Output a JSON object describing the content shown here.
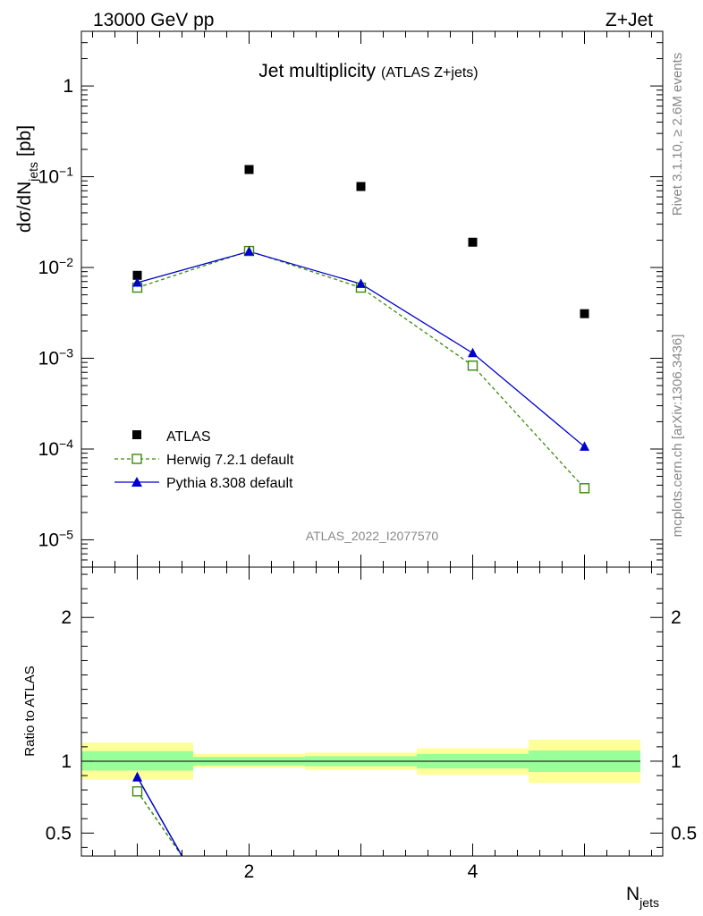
{
  "header": {
    "energy_label": "13000 GeV pp",
    "process_label": "Z+Jet"
  },
  "side_labels": {
    "rivet": "Rivet 3.1.10, ≥ 2.6M events",
    "mcplots": "mcplots.cern.ch [arXiv:1306.3436]"
  },
  "colors": {
    "atlas": "#000000",
    "herwig": "#3a8a0a",
    "pythia": "#0000cc",
    "band_inner": "#99ff99",
    "band_outer": "#ffff99"
  },
  "chart_data": [
    {
      "type": "scatter",
      "title": "Jet multiplicity",
      "subtitle": "(ATLAS Z+jets)",
      "ylabel": "dσ/dN",
      "ylabel_sub": "jets",
      "ylabel_unit": "[pb]",
      "yscale": "log",
      "xlim": [
        0.5,
        5.7
      ],
      "ylim": [
        5e-06,
        4
      ],
      "yticks": [
        {
          "base": "10",
          "exp": "−5",
          "value": 1e-05
        },
        {
          "base": "10",
          "exp": "−4",
          "value": 0.0001
        },
        {
          "base": "10",
          "exp": "−3",
          "value": 0.001
        },
        {
          "base": "10",
          "exp": "−2",
          "value": 0.01
        },
        {
          "base": "10",
          "exp": "−1",
          "value": 0.1
        },
        {
          "base": "1",
          "exp": "",
          "value": 1
        }
      ],
      "watermark": "ATLAS_2022_I2077570",
      "legend_position": "lower-left",
      "series": [
        {
          "name": "ATLAS",
          "style": "square",
          "x": [
            1,
            2,
            3,
            4,
            5
          ],
          "y": [
            0.0082,
            0.12,
            0.078,
            0.019,
            0.0031
          ]
        },
        {
          "name": "Herwig 7.2.1 default",
          "style": "open-square-dashed",
          "x": [
            1,
            2,
            3,
            4,
            5
          ],
          "y": [
            0.006,
            0.0152,
            0.006,
            0.00083,
            3.7e-05
          ]
        },
        {
          "name": "Pythia 8.308 default",
          "style": "triangle-solid",
          "x": [
            1,
            2,
            3,
            4,
            5
          ],
          "y": [
            0.0068,
            0.015,
            0.0066,
            0.00114,
            0.000106
          ]
        }
      ]
    },
    {
      "type": "line",
      "ylabel": "Ratio to ATLAS",
      "xlabel": "N",
      "xlabel_sub": "jets",
      "xlim": [
        0.5,
        5.7
      ],
      "ylim": [
        0.34,
        2.35
      ],
      "xticks": [
        2,
        4
      ],
      "yticks": [
        0.5,
        1,
        2
      ],
      "bands": [
        {
          "x0": 0.5,
          "x1": 1.5,
          "inner": [
            0.935,
            1.07
          ],
          "outer": [
            0.87,
            1.13
          ]
        },
        {
          "x0": 1.5,
          "x1": 2.5,
          "inner": [
            0.97,
            1.03
          ],
          "outer": [
            0.955,
            1.05
          ]
        },
        {
          "x0": 2.5,
          "x1": 3.5,
          "inner": [
            0.965,
            1.035
          ],
          "outer": [
            0.94,
            1.06
          ]
        },
        {
          "x0": 3.5,
          "x1": 4.5,
          "inner": [
            0.95,
            1.05
          ],
          "outer": [
            0.905,
            1.09
          ]
        },
        {
          "x0": 4.5,
          "x1": 5.5,
          "inner": [
            0.925,
            1.075
          ],
          "outer": [
            0.85,
            1.15
          ]
        }
      ],
      "series": [
        {
          "name": "Herwig 7.2.1 default",
          "x": [
            1,
            1.4
          ],
          "y": [
            0.79,
            0.34
          ]
        },
        {
          "name": "Pythia 8.308 default",
          "x": [
            1,
            1.4
          ],
          "y": [
            0.89,
            0.34
          ]
        }
      ]
    }
  ]
}
